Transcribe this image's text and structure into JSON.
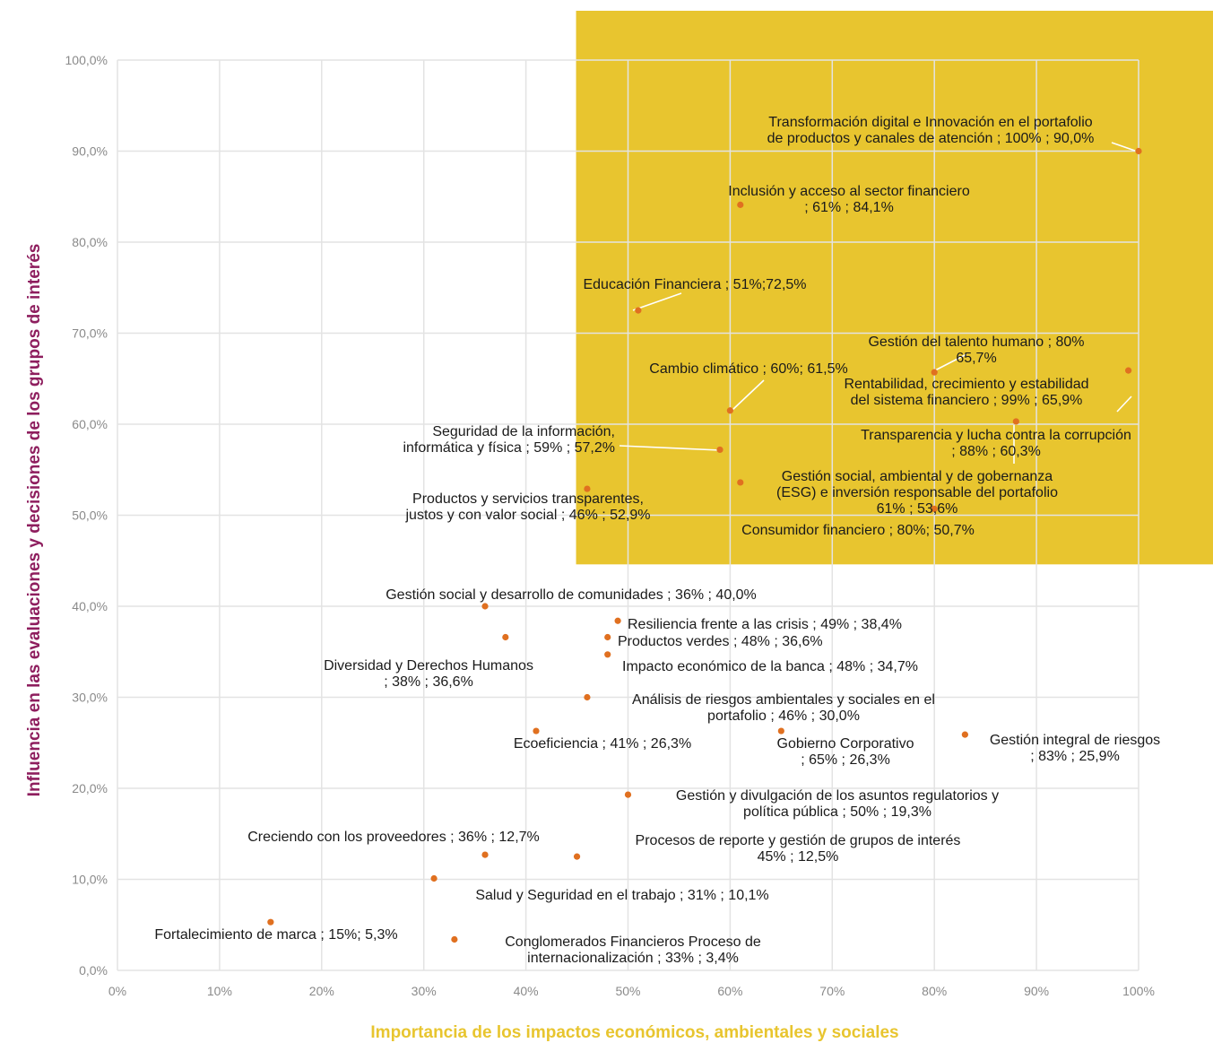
{
  "chart_data": {
    "type": "scatter",
    "title": "",
    "xlabel": "Importancia de los impactos económicos, ambientales y sociales",
    "ylabel": "Influencia en las evaluaciones y decisiones de los grupos de interés",
    "xlim": [
      0,
      100
    ],
    "ylim": [
      0,
      100
    ],
    "x_ticks": [
      "0%",
      "10%",
      "20%",
      "30%",
      "40%",
      "50%",
      "60%",
      "70%",
      "80%",
      "90%",
      "100%"
    ],
    "y_ticks": [
      "0,0%",
      "10,0%",
      "20,0%",
      "30,0%",
      "40,0%",
      "50,0%",
      "60,0%",
      "70,0%",
      "80,0%",
      "90,0%",
      "100,0%"
    ],
    "grid": true,
    "highlight_region": {
      "x_from": 45,
      "y_from": 44.6,
      "color": "#E8C52F"
    },
    "colors": {
      "point": "#E07020",
      "xlabel": "#E8C52F",
      "ylabel": "#8E1E5E",
      "gridline": "#e3e3e3"
    },
    "points": [
      {
        "x": 100,
        "y": 90.0,
        "label": [
          "Transformación digital e Innovación en el portafolio",
          "de productos y canales de atención ; 100% ; 90,0%"
        ]
      },
      {
        "x": 61,
        "y": 84.1,
        "label": [
          "Inclusión y acceso al sector financiero",
          "; 61% ; 84,1%"
        ]
      },
      {
        "x": 51,
        "y": 72.5,
        "label": [
          "Educación Financiera ; 51%;72,5%"
        ]
      },
      {
        "x": 80,
        "y": 65.7,
        "label": [
          "Gestión del talento humano ; 80%",
          "65,7%"
        ]
      },
      {
        "x": 99,
        "y": 65.9,
        "label": [
          "Rentabilidad, crecimiento y estabilidad",
          "del sistema financiero ; 99% ; 65,9%"
        ]
      },
      {
        "x": 60,
        "y": 61.5,
        "label": [
          "Cambio climático ;  60%;  61,5%"
        ]
      },
      {
        "x": 88,
        "y": 60.3,
        "label": [
          "Transparencia y lucha contra la corrupción",
          "; 88% ;  60,3%"
        ]
      },
      {
        "x": 59,
        "y": 57.2,
        "label": [
          "Seguridad de la información,",
          "informática y física ; 59% ; 57,2%"
        ]
      },
      {
        "x": 61,
        "y": 53.6,
        "label": [
          "Gestión social, ambiental y de gobernanza",
          "(ESG) e inversión responsable del portafolio",
          "61% ; 53,6%"
        ]
      },
      {
        "x": 46,
        "y": 52.9,
        "label": [
          "Productos y servicios transparentes,",
          "justos y con valor social ; 46% ; 52,9%"
        ]
      },
      {
        "x": 80,
        "y": 50.7,
        "label": [
          "Consumidor financiero ; 80%; 50,7%"
        ]
      },
      {
        "x": 36,
        "y": 40.0,
        "label": [
          "Gestión social y desarrollo de comunidades ; 36% ; 40,0%"
        ]
      },
      {
        "x": 49,
        "y": 38.4,
        "label": [
          "Resiliencia frente a las crisis ; 49% ; 38,4%"
        ]
      },
      {
        "x": 48,
        "y": 36.6,
        "label": [
          "Productos verdes ; 48% ; 36,6%"
        ]
      },
      {
        "x": 38,
        "y": 36.6,
        "label": [
          "Diversidad y Derechos Humanos",
          "; 38% ; 36,6%"
        ]
      },
      {
        "x": 48,
        "y": 34.7,
        "label": [
          "Impacto económico de la banca ; 48% ; 34,7%"
        ]
      },
      {
        "x": 46,
        "y": 30.0,
        "label": [
          "Análisis de riesgos ambientales y sociales en el",
          "portafolio ; 46% ; 30,0%"
        ]
      },
      {
        "x": 41,
        "y": 26.3,
        "label": [
          "Ecoeficiencia ; 41% ; 26,3%"
        ]
      },
      {
        "x": 65,
        "y": 26.3,
        "label": [
          "Gobierno Corporativo",
          "; 65% ; 26,3%"
        ]
      },
      {
        "x": 83,
        "y": 25.9,
        "label": [
          "Gestión integral de riesgos",
          "; 83% ; 25,9%"
        ]
      },
      {
        "x": 50,
        "y": 19.3,
        "label": [
          "Gestión y divulgación de los asuntos regulatorios y",
          "política pública ; 50% ; 19,3%"
        ]
      },
      {
        "x": 36,
        "y": 12.7,
        "label": [
          "Creciendo con los proveedores ; 36% ; 12,7%"
        ]
      },
      {
        "x": 45,
        "y": 12.5,
        "label": [
          "Procesos de reporte y gestión de grupos de interés",
          "45% ; 12,5%"
        ]
      },
      {
        "x": 31,
        "y": 10.1,
        "label": [
          "Salud y Seguridad en el trabajo ; 31% ; 10,1%"
        ]
      },
      {
        "x": 15,
        "y": 5.3,
        "label": [
          "Fortalecimiento de marca ; 15%; 5,3%"
        ]
      },
      {
        "x": 33,
        "y": 3.4,
        "label": [
          "Conglomerados Financieros Proceso de",
          "internacionalización ; 33% ; 3,4%"
        ]
      }
    ]
  }
}
